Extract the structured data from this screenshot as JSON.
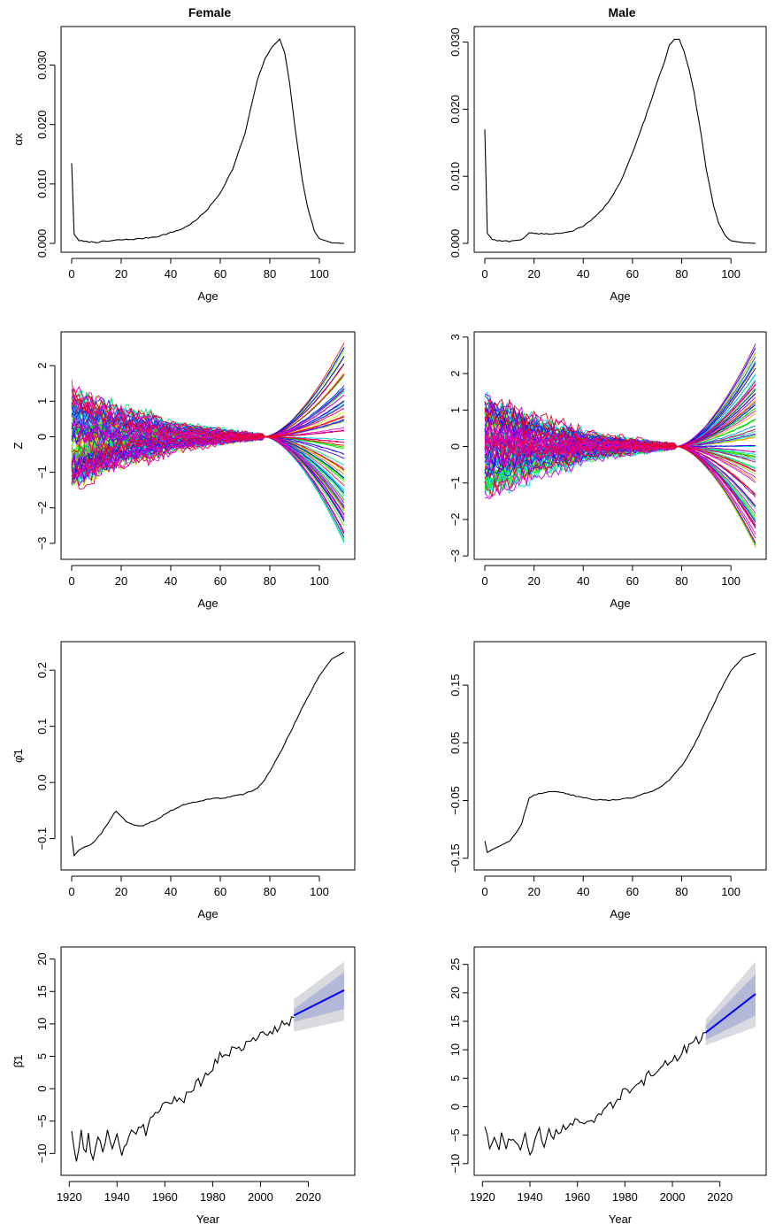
{
  "column_titles": [
    "Female",
    "Male"
  ],
  "chart_data": [
    {
      "id": "female-alpha",
      "type": "line",
      "column": "Female",
      "xlabel": "Age",
      "ylabel": "αx",
      "xlim": [
        0,
        110
      ],
      "ylim": [
        0,
        0.035
      ],
      "xticks": [
        0,
        20,
        40,
        60,
        80,
        100
      ],
      "yticks": [
        0.0,
        0.01,
        0.02,
        0.03
      ],
      "ytick_labels": [
        "0.000",
        "0.010",
        "0.020",
        "0.030"
      ],
      "series": [
        {
          "color": "#000000",
          "x": [
            0,
            1,
            3,
            5,
            10,
            15,
            20,
            25,
            30,
            35,
            40,
            45,
            50,
            55,
            60,
            65,
            70,
            73,
            75,
            78,
            80,
            82,
            84,
            86,
            88,
            90,
            93,
            95,
            98,
            100,
            105,
            110
          ],
          "y": [
            0.0135,
            0.0015,
            0.0005,
            0.0003,
            0.0002,
            0.0004,
            0.0006,
            0.0007,
            0.0009,
            0.0012,
            0.0018,
            0.0025,
            0.0038,
            0.0058,
            0.0085,
            0.0125,
            0.0185,
            0.024,
            0.0275,
            0.031,
            0.0325,
            0.0335,
            0.0345,
            0.032,
            0.027,
            0.02,
            0.011,
            0.0065,
            0.002,
            0.0008,
            0.0001,
            0.0
          ]
        }
      ]
    },
    {
      "id": "male-alpha",
      "type": "line",
      "column": "Male",
      "xlabel": "Age",
      "ylabel": "",
      "xlim": [
        0,
        110
      ],
      "ylim": [
        0,
        0.031
      ],
      "xticks": [
        0,
        20,
        40,
        60,
        80,
        100
      ],
      "yticks": [
        0.0,
        0.01,
        0.02,
        0.03
      ],
      "ytick_labels": [
        "0.000",
        "0.010",
        "0.020",
        "0.030"
      ],
      "series": [
        {
          "color": "#000000",
          "x": [
            0,
            1,
            3,
            5,
            10,
            15,
            18,
            20,
            25,
            30,
            35,
            40,
            45,
            50,
            55,
            60,
            65,
            70,
            73,
            75,
            77,
            79,
            81,
            83,
            85,
            88,
            90,
            93,
            95,
            98,
            100,
            105,
            110
          ],
          "y": [
            0.017,
            0.0015,
            0.0006,
            0.0004,
            0.0003,
            0.0006,
            0.0015,
            0.0015,
            0.0014,
            0.0015,
            0.0018,
            0.0025,
            0.004,
            0.006,
            0.009,
            0.0135,
            0.0185,
            0.024,
            0.027,
            0.0295,
            0.0305,
            0.0305,
            0.0285,
            0.026,
            0.0225,
            0.016,
            0.011,
            0.0055,
            0.003,
            0.001,
            0.0004,
            0.0001,
            0.0
          ]
        }
      ]
    },
    {
      "id": "female-z",
      "type": "line",
      "column": "Female",
      "xlabel": "Age",
      "ylabel": "Z",
      "xlim": [
        0,
        110
      ],
      "ylim": [
        -3.2,
        2.7
      ],
      "xticks": [
        0,
        20,
        40,
        60,
        80,
        100
      ],
      "yticks": [
        -3,
        -2,
        -1,
        0,
        1,
        2
      ],
      "ytick_labels": [
        "−3",
        "−2",
        "−1",
        "0",
        "1",
        "2"
      ],
      "series_count": 95,
      "end_range": [
        -3.1,
        2.65
      ]
    },
    {
      "id": "male-z",
      "type": "line",
      "column": "Male",
      "xlabel": "Age",
      "ylabel": "",
      "xlim": [
        0,
        110
      ],
      "ylim": [
        -2.85,
        2.9
      ],
      "xticks": [
        0,
        20,
        40,
        60,
        80,
        100
      ],
      "yticks": [
        -3,
        -2,
        -1,
        0,
        1,
        2,
        3
      ],
      "ytick_labels": [
        "−3",
        "−2",
        "−1",
        "0",
        "1",
        "2",
        "3"
      ],
      "series_count": 95,
      "end_range": [
        -2.8,
        2.85
      ]
    },
    {
      "id": "female-phi",
      "type": "line",
      "column": "Female",
      "xlabel": "Age",
      "ylabel": "φ̂1",
      "xlim": [
        0,
        110
      ],
      "ylim": [
        -0.14,
        0.235
      ],
      "xticks": [
        0,
        20,
        40,
        60,
        80,
        100
      ],
      "yticks": [
        -0.1,
        0.0,
        0.1,
        0.2
      ],
      "ytick_labels": [
        "−0.1",
        "0.0",
        "0.1",
        "0.2"
      ],
      "series": [
        {
          "color": "#000000",
          "x": [
            0,
            1,
            3,
            5,
            8,
            10,
            12,
            15,
            17,
            18,
            20,
            22,
            25,
            28,
            30,
            35,
            40,
            45,
            50,
            55,
            60,
            65,
            70,
            75,
            78,
            80,
            85,
            90,
            95,
            100,
            105,
            110
          ],
          "y": [
            -0.095,
            -0.13,
            -0.12,
            -0.115,
            -0.11,
            -0.1,
            -0.09,
            -0.07,
            -0.055,
            -0.05,
            -0.06,
            -0.07,
            -0.075,
            -0.078,
            -0.075,
            -0.065,
            -0.05,
            -0.04,
            -0.035,
            -0.03,
            -0.028,
            -0.025,
            -0.02,
            -0.01,
            0.005,
            0.02,
            0.06,
            0.105,
            0.15,
            0.19,
            0.22,
            0.232
          ]
        }
      ]
    },
    {
      "id": "male-phi",
      "type": "line",
      "column": "Male",
      "xlabel": "Age",
      "ylabel": "",
      "xlim": [
        0,
        110
      ],
      "ylim": [
        -0.155,
        0.21
      ],
      "xticks": [
        0,
        20,
        40,
        60,
        80,
        100
      ],
      "yticks": [
        -0.15,
        -0.05,
        0.05,
        0.15
      ],
      "ytick_labels": [
        "−0.15",
        "−0.05",
        "0.05",
        "0.15"
      ],
      "series": [
        {
          "color": "#000000",
          "x": [
            0,
            1,
            3,
            5,
            8,
            10,
            12,
            15,
            17,
            18,
            20,
            25,
            30,
            35,
            40,
            45,
            50,
            55,
            60,
            65,
            70,
            75,
            80,
            85,
            90,
            95,
            100,
            105,
            110
          ],
          "y": [
            -0.12,
            -0.14,
            -0.135,
            -0.13,
            -0.125,
            -0.12,
            -0.11,
            -0.09,
            -0.06,
            -0.045,
            -0.04,
            -0.035,
            -0.035,
            -0.04,
            -0.045,
            -0.048,
            -0.05,
            -0.048,
            -0.045,
            -0.038,
            -0.03,
            -0.015,
            0.01,
            0.045,
            0.09,
            0.135,
            0.175,
            0.198,
            0.205
          ]
        }
      ]
    },
    {
      "id": "female-beta",
      "type": "line",
      "column": "Female",
      "xlabel": "Year",
      "ylabel": "β̂1",
      "xlim": [
        1921,
        2035
      ],
      "ylim": [
        -12,
        20.5
      ],
      "xticks": [
        1920,
        1940,
        1960,
        1980,
        2000,
        2020
      ],
      "yticks": [
        -10,
        -5,
        0,
        5,
        10,
        15,
        20
      ],
      "ytick_labels": [
        "−10",
        "−5",
        "0",
        "5",
        "10",
        "15",
        "20"
      ],
      "series": [
        {
          "color": "#000000",
          "x": [
            1921,
            1922,
            1923,
            1924,
            1925,
            1927,
            1928,
            1930,
            1932,
            1934,
            1936,
            1938,
            1940,
            1942,
            1944,
            1946,
            1948,
            1950,
            1952,
            1955,
            1958,
            1960,
            1962,
            1965,
            1968,
            1970,
            1972,
            1975,
            1978,
            1980,
            1983,
            1985,
            1988,
            1990,
            1993,
            1995,
            1998,
            2000,
            2003,
            2005,
            2008,
            2010,
            2012,
            2014
          ],
          "y": [
            -6.5,
            -8.5,
            -11.8,
            -9.5,
            -6.5,
            -10.5,
            -7.5,
            -11.2,
            -8,
            -9.5,
            -7,
            -9,
            -7,
            -10,
            -9,
            -6,
            -7,
            -5.5,
            -6.5,
            -4.5,
            -3.5,
            -2,
            -2.5,
            -1.5,
            -2,
            -0.5,
            0.5,
            1,
            2.5,
            3.5,
            5,
            4.5,
            6,
            5.5,
            6.5,
            7,
            7.5,
            8,
            9,
            9,
            9.5,
            10,
            10.5,
            11
          ]
        }
      ],
      "forecast": {
        "x": [
          2014,
          2035
        ],
        "mean": [
          11.3,
          15.2
        ],
        "pi80": {
          "lower": [
            10.3,
            12.3
          ],
          "upper": [
            12.3,
            18.0
          ]
        },
        "pi95": {
          "lower": [
            8.8,
            10.5
          ],
          "upper": [
            13.8,
            19.6
          ]
        },
        "mean_color": "#0000ff",
        "pi80_color": "#b3b8d6",
        "pi95_color": "#d9d9e0"
      }
    },
    {
      "id": "male-beta",
      "type": "line",
      "column": "Male",
      "xlabel": "Year",
      "ylabel": "",
      "xlim": [
        1921,
        2035
      ],
      "ylim": [
        -10.5,
        26.5
      ],
      "xticks": [
        1920,
        1940,
        1960,
        1980,
        2000,
        2020
      ],
      "yticks": [
        -10,
        -5,
        0,
        5,
        10,
        15,
        20,
        25
      ],
      "ytick_labels": [
        "−10",
        "−5",
        "0",
        "5",
        "10",
        "15",
        "20",
        "25"
      ],
      "series": [
        {
          "color": "#000000",
          "x": [
            1921,
            1922,
            1923,
            1925,
            1927,
            1928,
            1930,
            1932,
            1934,
            1936,
            1938,
            1940,
            1942,
            1944,
            1946,
            1948,
            1950,
            1952,
            1955,
            1958,
            1960,
            1962,
            1965,
            1968,
            1970,
            1972,
            1975,
            1978,
            1980,
            1983,
            1985,
            1988,
            1990,
            1993,
            1995,
            1998,
            2000,
            2003,
            2005,
            2008,
            2010,
            2012,
            2014
          ],
          "y": [
            -3.5,
            -5.5,
            -7,
            -5,
            -8,
            -5,
            -7,
            -5.5,
            -6.5,
            -7,
            -5,
            -8.5,
            -6.5,
            -4,
            -6.5,
            -4.5,
            -5,
            -4,
            -3.5,
            -3,
            -2.5,
            -3.5,
            -3,
            -1.5,
            -2,
            0,
            0.5,
            2,
            3,
            2.5,
            4,
            4.5,
            5.5,
            6,
            7,
            7.5,
            8.5,
            9,
            10,
            10.5,
            11.5,
            12,
            13
          ]
        }
      ],
      "forecast": {
        "x": [
          2014,
          2035
        ],
        "mean": [
          13.0,
          19.8
        ],
        "pi80": {
          "lower": [
            11.7,
            16.0
          ],
          "upper": [
            14.3,
            23.3
          ]
        },
        "pi95": {
          "lower": [
            10.8,
            14.0
          ],
          "upper": [
            15.3,
            25.5
          ]
        },
        "mean_color": "#0000ff",
        "pi80_color": "#b3b8d6",
        "pi95_color": "#d9d9e0"
      }
    }
  ]
}
